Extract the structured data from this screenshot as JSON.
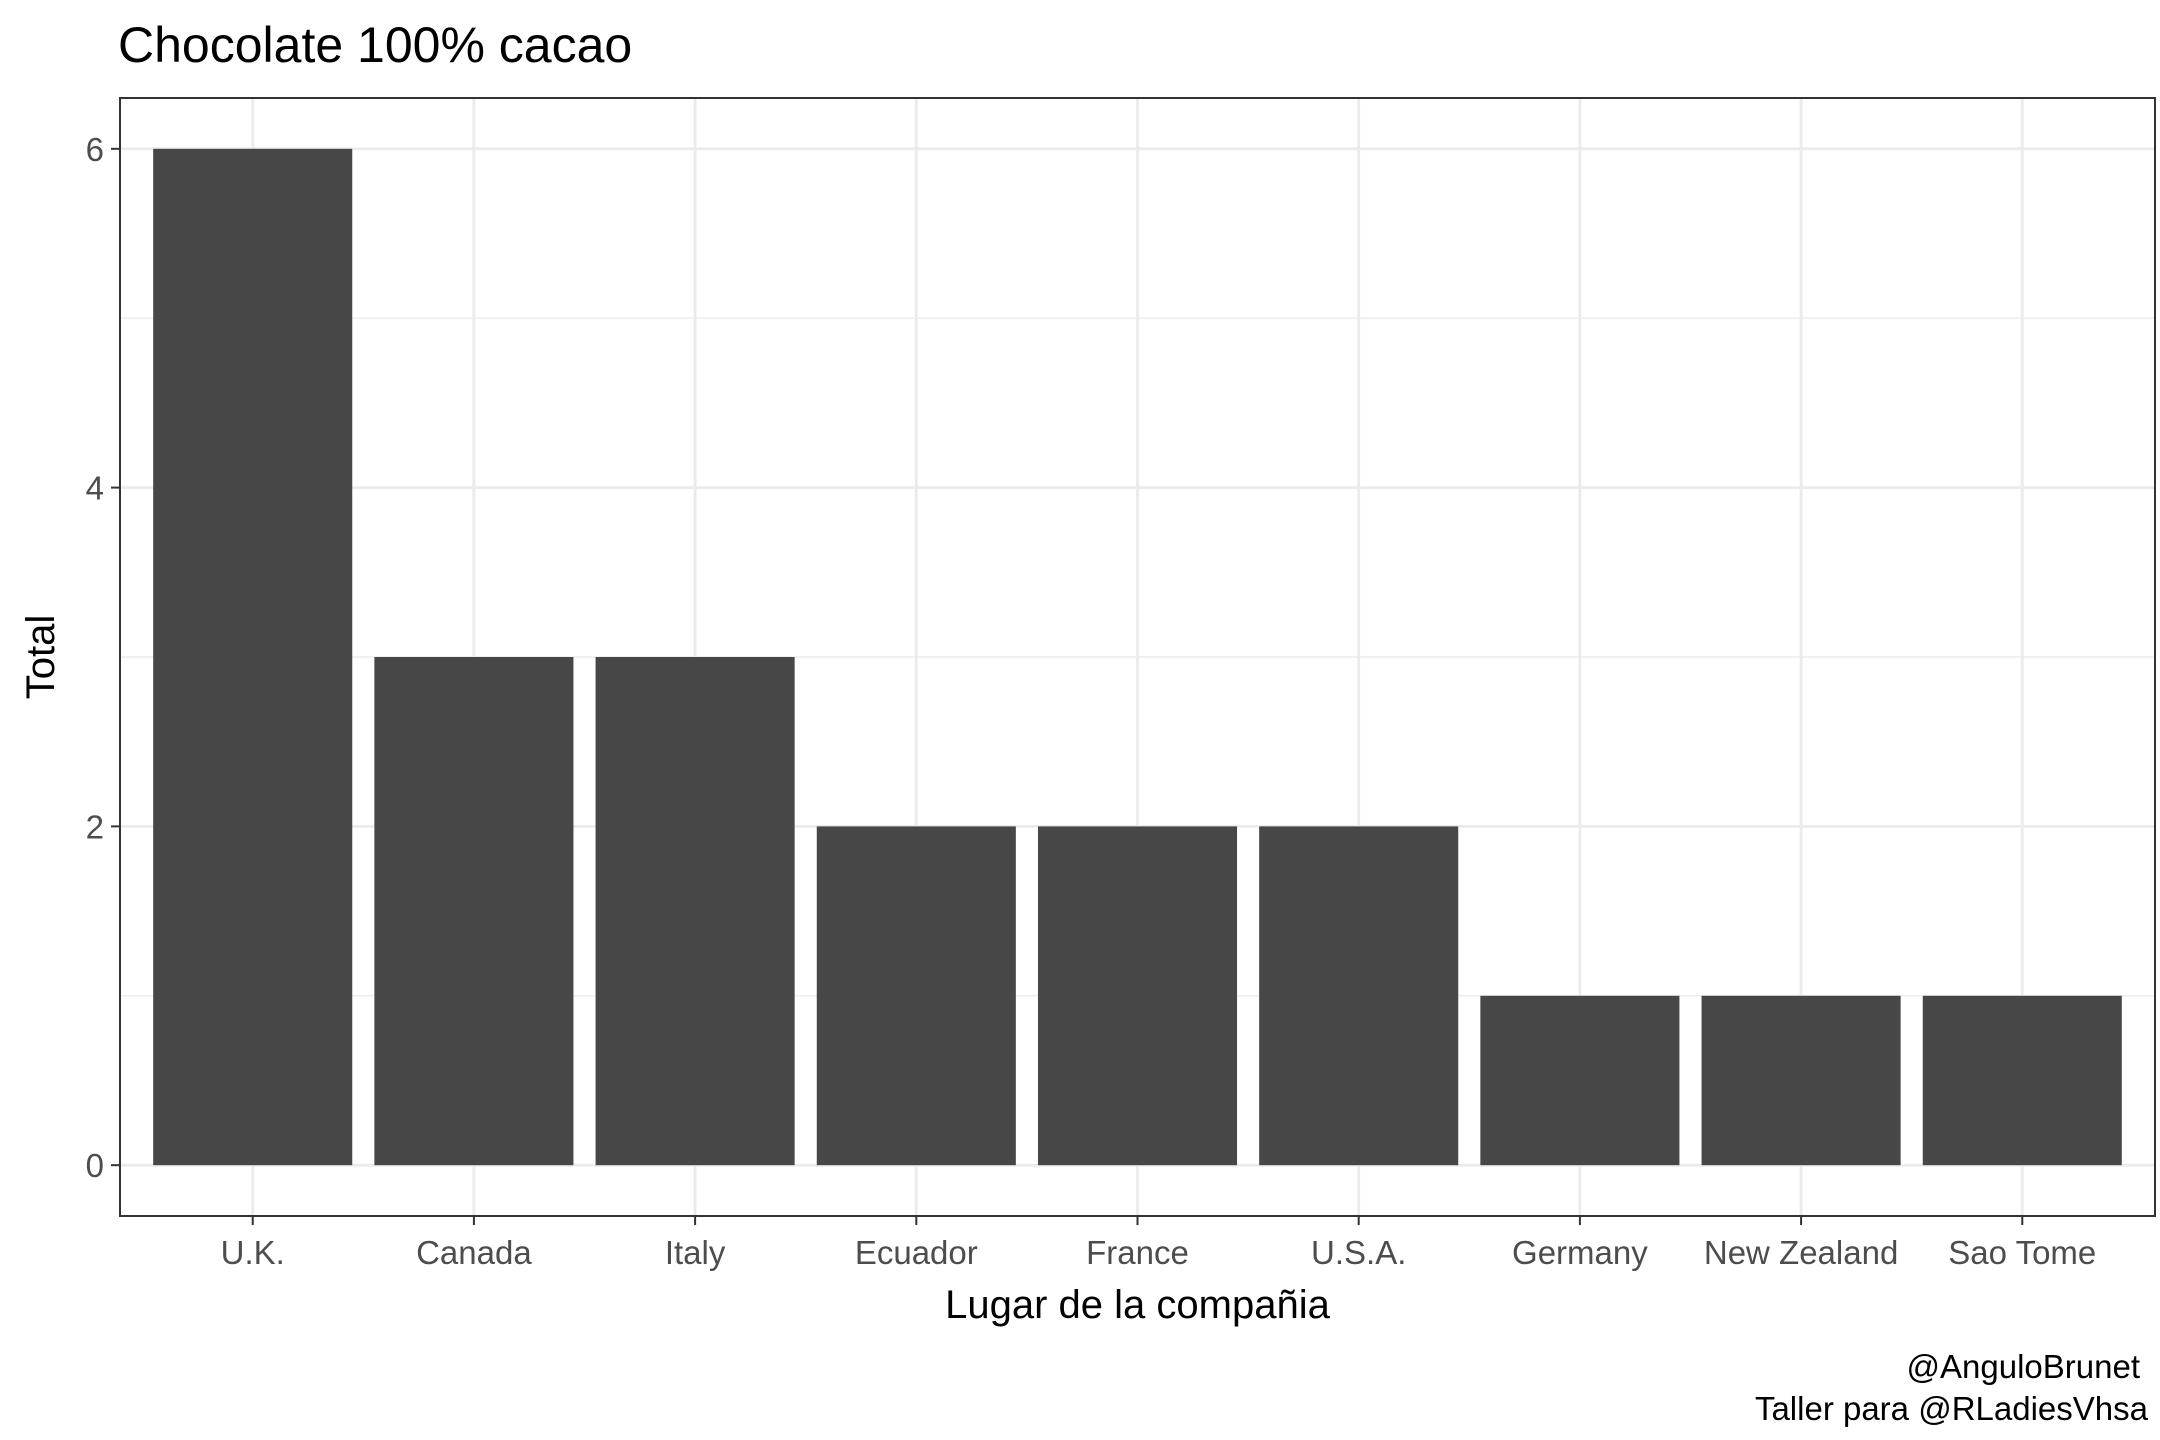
{
  "chart_data": {
    "type": "bar",
    "title": "Chocolate 100% cacao",
    "xlabel": "Lugar de la compañia",
    "ylabel": "Total",
    "categories": [
      "U.K.",
      "Canada",
      "Italy",
      "Ecuador",
      "France",
      "U.S.A.",
      "Germany",
      "New Zealand",
      "Sao Tome"
    ],
    "values": [
      6,
      3,
      3,
      2,
      2,
      2,
      1,
      1,
      1
    ],
    "ylim": [
      -0.3,
      6.3
    ],
    "yticks": [
      0,
      2,
      4,
      6
    ],
    "grid": true,
    "bar_color": "#474747",
    "caption": [
      "@AnguloBrunet",
      "Taller para @RLadiesVhsa"
    ]
  }
}
